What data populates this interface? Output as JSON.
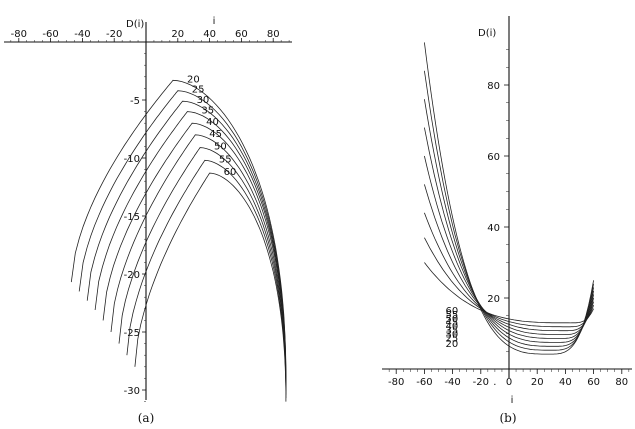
{
  "captions": {
    "a": "(a)",
    "b": "(b)"
  },
  "chart_data": [
    {
      "panel": "(a)",
      "type": "line",
      "xlabel": "i",
      "ylabel": "D(i)",
      "xticks": [
        -80,
        -60,
        -40,
        -20,
        20,
        40,
        60,
        80
      ],
      "yticks": [
        -5,
        -10,
        -15,
        -20,
        -25,
        -30
      ],
      "xlim": [
        -88,
        92
      ],
      "ylim": [
        -32,
        1
      ],
      "x_axis_position": "top",
      "series": [
        {
          "name": "20",
          "peak_x": 17,
          "peak_y": -3.3,
          "left_end": [
            -47,
            -20.7
          ],
          "right_end": [
            88,
            -29.0
          ]
        },
        {
          "name": "25",
          "peak_x": 20,
          "peak_y": -4.2,
          "left_end": [
            -42,
            -21.5
          ],
          "right_end": [
            88,
            -29.2
          ]
        },
        {
          "name": "30",
          "peak_x": 23,
          "peak_y": -5.1,
          "left_end": [
            -37,
            -22.3
          ],
          "right_end": [
            88,
            -29.4
          ]
        },
        {
          "name": "35",
          "peak_x": 26,
          "peak_y": -6.0,
          "left_end": [
            -32,
            -23.1
          ],
          "right_end": [
            88,
            -29.6
          ]
        },
        {
          "name": "40",
          "peak_x": 29,
          "peak_y": -7.0,
          "left_end": [
            -27,
            -24.0
          ],
          "right_end": [
            88,
            -29.8
          ]
        },
        {
          "name": "45",
          "peak_x": 31,
          "peak_y": -8.0,
          "left_end": [
            -22,
            -25.0
          ],
          "right_end": [
            88,
            -30.1
          ]
        },
        {
          "name": "50",
          "peak_x": 34,
          "peak_y": -9.1,
          "left_end": [
            -17,
            -26.0
          ],
          "right_end": [
            88,
            -30.4
          ]
        },
        {
          "name": "55",
          "peak_x": 37,
          "peak_y": -10.2,
          "left_end": [
            -12,
            -27.0
          ],
          "right_end": [
            88,
            -30.7
          ]
        },
        {
          "name": "60",
          "peak_x": 40,
          "peak_y": -11.3,
          "left_end": [
            -7,
            -28.0
          ],
          "right_end": [
            88,
            -31.0
          ]
        }
      ]
    },
    {
      "panel": "(b)",
      "type": "line",
      "xlabel": "i",
      "ylabel": "D(i)",
      "xticks": [
        -80,
        -60,
        -40,
        -20,
        0,
        20,
        40,
        60,
        80
      ],
      "yticks": [
        20,
        40,
        60,
        80
      ],
      "xlim": [
        -88,
        92
      ],
      "ylim": [
        0,
        94
      ],
      "x_axis_position": "bottom",
      "series": [
        {
          "name": "20",
          "start": [
            -60,
            92
          ],
          "min": [
            28,
            4.2
          ],
          "end": [
            60,
            25
          ]
        },
        {
          "name": "25",
          "start": [
            -60,
            84
          ],
          "min": [
            30,
            5.3
          ],
          "end": [
            60,
            24
          ]
        },
        {
          "name": "30",
          "start": [
            -60,
            76
          ],
          "min": [
            32,
            6.4
          ],
          "end": [
            60,
            23
          ]
        },
        {
          "name": "35",
          "start": [
            -60,
            68
          ],
          "min": [
            34,
            7.5
          ],
          "end": [
            60,
            22
          ]
        },
        {
          "name": "40",
          "start": [
            -60,
            60
          ],
          "min": [
            36,
            8.6
          ],
          "end": [
            60,
            21
          ]
        },
        {
          "name": "45",
          "start": [
            -60,
            52
          ],
          "min": [
            38,
            9.7
          ],
          "end": [
            60,
            20
          ]
        },
        {
          "name": "50",
          "start": [
            -60,
            44
          ],
          "min": [
            40,
            10.8
          ],
          "end": [
            60,
            19
          ]
        },
        {
          "name": "55",
          "start": [
            -60,
            37
          ],
          "min": [
            42,
            11.9
          ],
          "end": [
            60,
            18
          ]
        },
        {
          "name": "60",
          "start": [
            -60,
            30
          ],
          "min": [
            44,
            13.0
          ],
          "end": [
            60,
            17
          ]
        }
      ]
    }
  ]
}
